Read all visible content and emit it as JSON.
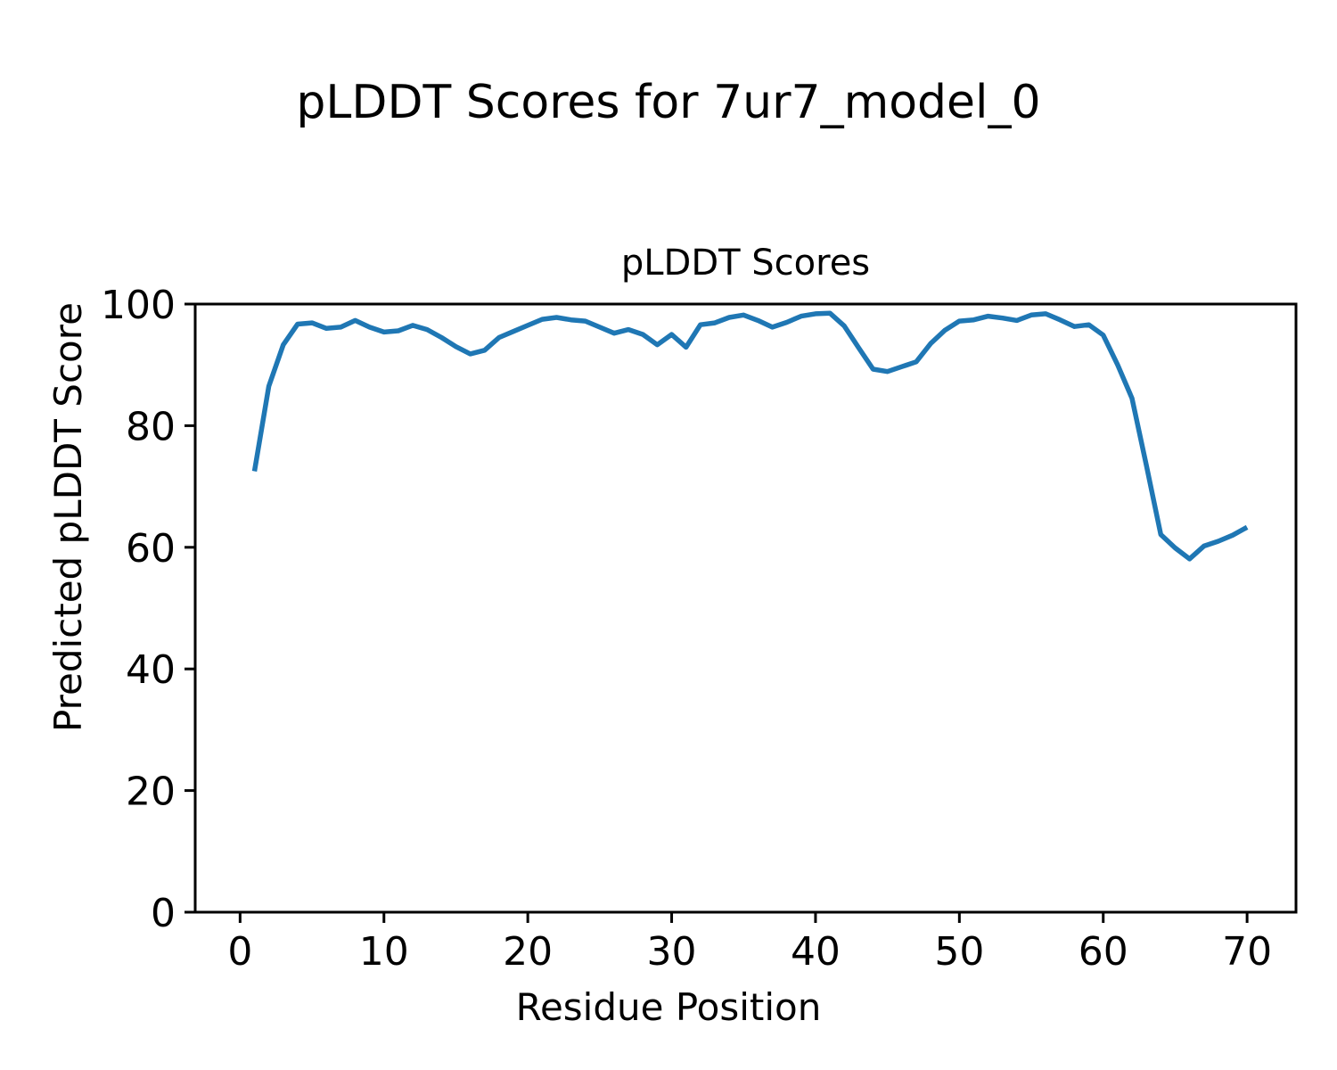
{
  "figure": {
    "title": "pLDDT Scores for 7ur7_model_0"
  },
  "chart_data": {
    "type": "line",
    "title": "pLDDT Scores",
    "xlabel": "Residue Position",
    "ylabel": "Predicted pLDDT Score",
    "x": [
      1,
      2,
      3,
      4,
      5,
      6,
      7,
      8,
      9,
      10,
      11,
      12,
      13,
      14,
      15,
      16,
      17,
      18,
      19,
      20,
      21,
      22,
      23,
      24,
      25,
      26,
      27,
      28,
      29,
      30,
      31,
      32,
      33,
      34,
      35,
      36,
      37,
      38,
      39,
      40,
      41,
      42,
      43,
      44,
      45,
      46,
      47,
      48,
      49,
      50,
      51,
      52,
      53,
      54,
      55,
      56,
      57,
      58,
      59,
      60,
      61,
      62,
      63,
      64,
      65,
      66,
      67,
      68,
      69,
      70
    ],
    "y": [
      72.5,
      86.5,
      93.3,
      96.7,
      96.9,
      96.0,
      96.2,
      97.3,
      96.2,
      95.4,
      95.6,
      96.5,
      95.8,
      94.5,
      93.0,
      91.8,
      92.4,
      94.5,
      95.5,
      96.5,
      97.5,
      97.8,
      97.4,
      97.2,
      96.2,
      95.2,
      95.8,
      95.0,
      93.3,
      95.0,
      92.9,
      96.6,
      96.9,
      97.8,
      98.2,
      97.3,
      96.2,
      97.0,
      98.0,
      98.4,
      98.5,
      96.4,
      92.8,
      89.3,
      88.9,
      89.7,
      90.5,
      93.5,
      95.7,
      97.2,
      97.4,
      98.0,
      97.7,
      97.3,
      98.2,
      98.4,
      97.4,
      96.3,
      96.6,
      94.9,
      90.0,
      84.5,
      73.5,
      62.1,
      59.9,
      58.1,
      60.2,
      61.0,
      62.0,
      63.3
    ],
    "xticks": [
      0,
      10,
      20,
      30,
      40,
      50,
      60,
      70
    ],
    "yticks": [
      0,
      20,
      40,
      60,
      80,
      100
    ],
    "xlim": [
      -3.12,
      73.4
    ],
    "ylim": [
      0,
      100
    ],
    "grid": false,
    "legend": false,
    "line_color": "#1f77b4",
    "axis_color": "#000000",
    "line_width": 5.5
  }
}
